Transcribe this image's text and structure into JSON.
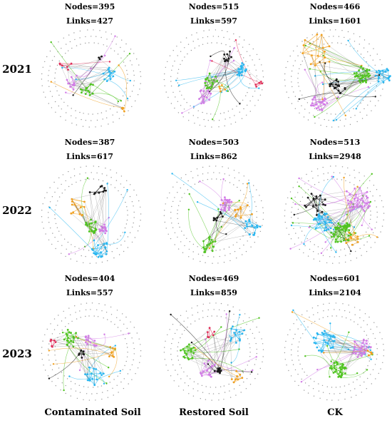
{
  "years": [
    "2021",
    "2022",
    "2023"
  ],
  "columns": [
    "Contaminated Soil",
    "Restored Soil",
    "CK"
  ],
  "colors": {
    "green": "#4fc41f",
    "blue": "#29b6f0",
    "purple": "#d27be6",
    "orange": "#f0a020",
    "black": "#1a1a1a",
    "red": "#e0305a",
    "gray": "#9a9a9a"
  },
  "panels": [
    {
      "year": "2021",
      "column": "Contaminated Soil",
      "nodes_text": "Nodes=395",
      "links_text": "Links=427",
      "nodes": 395,
      "links": 427
    },
    {
      "year": "2021",
      "column": "Restored Soil",
      "nodes_text": "Nodes=515",
      "links_text": "Links=597",
      "nodes": 515,
      "links": 597
    },
    {
      "year": "2021",
      "column": "CK",
      "nodes_text": "Nodes=466",
      "links_text": "Links=1601",
      "nodes": 466,
      "links": 1601
    },
    {
      "year": "2022",
      "column": "Contaminated Soil",
      "nodes_text": "Nodes=387",
      "links_text": "Links=617",
      "nodes": 387,
      "links": 617
    },
    {
      "year": "2022",
      "column": "Restored Soil",
      "nodes_text": "Nodes=503",
      "links_text": "Links=862",
      "nodes": 503,
      "links": 862
    },
    {
      "year": "2022",
      "column": "CK",
      "nodes_text": "Nodes=513",
      "links_text": "Links=2948",
      "nodes": 513,
      "links": 2948
    },
    {
      "year": "2023",
      "column": "Contaminated Soil",
      "nodes_text": "Nodes=404",
      "links_text": "Links=557",
      "nodes": 404,
      "links": 557
    },
    {
      "year": "2023",
      "column": "Restored Soil",
      "nodes_text": "Nodes=469",
      "links_text": "Links=859",
      "nodes": 469,
      "links": 859
    },
    {
      "year": "2023",
      "column": "CK",
      "nodes_text": "Nodes=601",
      "links_text": "Links=2104",
      "nodes": 601,
      "links": 2104
    }
  ]
}
